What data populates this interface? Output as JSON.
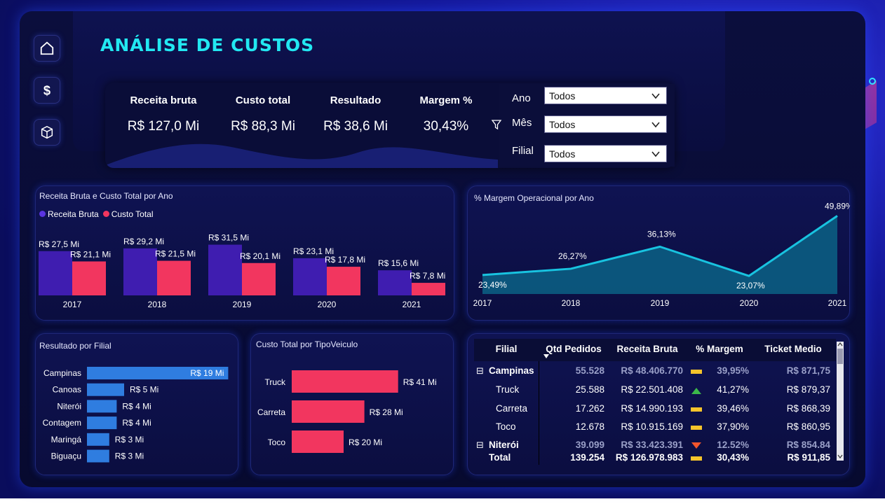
{
  "title": "ANÁLISE DE CUSTOS",
  "sidebar": [
    {
      "name": "home",
      "icon": "home-icon"
    },
    {
      "name": "dollar",
      "icon": "dollar-icon"
    },
    {
      "name": "box",
      "icon": "box-icon"
    }
  ],
  "kpis": [
    {
      "label": "Receita bruta",
      "value": "R$ 127,0 Mi"
    },
    {
      "label": "Custo total",
      "value": "R$ 88,3 Mi"
    },
    {
      "label": "Resultado",
      "value": "R$ 38,6 Mi"
    },
    {
      "label": "Margem %",
      "value": "30,43%"
    }
  ],
  "filters": [
    {
      "label": "Ano",
      "value": "Todos"
    },
    {
      "label": "Mês",
      "value": "Todos"
    },
    {
      "label": "Filial",
      "value": "Todos"
    }
  ],
  "colors": {
    "receita": "#3f1db0",
    "custo": "#f2365f",
    "filial_bar": "#2f7de0",
    "line": "#18c3e0",
    "area": "#0b5d82",
    "title": "#22e8f2"
  },
  "chart_data": [
    {
      "type": "bar",
      "title": "Receita Bruta e Custo Total por Ano",
      "categories": [
        "2017",
        "2018",
        "2019",
        "2020",
        "2021"
      ],
      "series": [
        {
          "name": "Receita Bruta",
          "values": [
            27.5,
            29.2,
            31.5,
            23.1,
            15.6
          ],
          "labels": [
            "R$ 27,5 Mi",
            "R$ 29,2 Mi",
            "R$ 31,5 Mi",
            "R$ 23,1 Mi",
            "R$ 15,6 Mi"
          ]
        },
        {
          "name": "Custo Total",
          "values": [
            21.1,
            21.5,
            20.1,
            17.8,
            7.8
          ],
          "labels": [
            "R$ 21,1 Mi",
            "R$ 21,5 Mi",
            "R$ 20,1 Mi",
            "R$ 17,8 Mi",
            "R$ 7,8 Mi"
          ]
        }
      ],
      "legend": "top-left"
    },
    {
      "type": "area",
      "title": "% Margem Operacional por Ano",
      "x": [
        "2017",
        "2018",
        "2019",
        "2020",
        "2021"
      ],
      "values": [
        23.49,
        26.27,
        36.13,
        23.07,
        49.89
      ],
      "labels": [
        "23,49%",
        "26,27%",
        "36,13%",
        "23,07%",
        "49,89%"
      ],
      "ylim": [
        0,
        50
      ]
    },
    {
      "type": "bar",
      "orientation": "horizontal",
      "title": "Resultado por Filial",
      "categories": [
        "Campinas",
        "Canoas",
        "Niterói",
        "Contagem",
        "Maringá",
        "Biguaçu"
      ],
      "values": [
        19,
        5,
        4,
        4,
        3,
        3
      ],
      "labels": [
        "R$ 19 Mi",
        "R$ 5 Mi",
        "R$ 4 Mi",
        "R$ 4 Mi",
        "R$ 3 Mi",
        "R$ 3 Mi"
      ]
    },
    {
      "type": "bar",
      "orientation": "horizontal",
      "title": "Custo Total por TipoVeiculo",
      "categories": [
        "Truck",
        "Carreta",
        "Toco"
      ],
      "values": [
        41,
        28,
        20
      ],
      "labels": [
        "R$ 41 Mi",
        "R$ 28 Mi",
        "R$ 20 Mi"
      ]
    }
  ],
  "table": {
    "columns": [
      "Filial",
      "Qtd Pedidos",
      "Receita Bruta",
      "% Margem",
      "Ticket Medio"
    ],
    "rows": [
      {
        "level": 0,
        "expander": "⊟",
        "filial": "Campinas",
        "qtd": "55.528",
        "receita": "R$ 48.406.770",
        "indicator": "neutral",
        "margem": "39,95%",
        "ticket": "R$ 871,75"
      },
      {
        "level": 1,
        "filial": "Truck",
        "qtd": "25.588",
        "receita": "R$ 22.501.408",
        "indicator": "up",
        "margem": "41,27%",
        "ticket": "R$ 879,37"
      },
      {
        "level": 1,
        "filial": "Carreta",
        "qtd": "17.262",
        "receita": "R$ 14.990.193",
        "indicator": "neutral",
        "margem": "39,46%",
        "ticket": "R$ 868,39"
      },
      {
        "level": 1,
        "filial": "Toco",
        "qtd": "12.678",
        "receita": "R$ 10.915.169",
        "indicator": "neutral",
        "margem": "37,90%",
        "ticket": "R$ 860,95"
      },
      {
        "level": 0,
        "expander": "⊟",
        "filial": "Niterói",
        "qtd": "39.099",
        "receita": "R$ 33.423.391",
        "indicator": "down",
        "margem": "12,52%",
        "ticket": "R$ 854,84"
      }
    ],
    "total": {
      "filial": "Total",
      "qtd": "139.254",
      "receita": "R$ 126.978.983",
      "indicator": "neutral",
      "margem": "30,43%",
      "ticket": "R$ 911,85"
    }
  }
}
